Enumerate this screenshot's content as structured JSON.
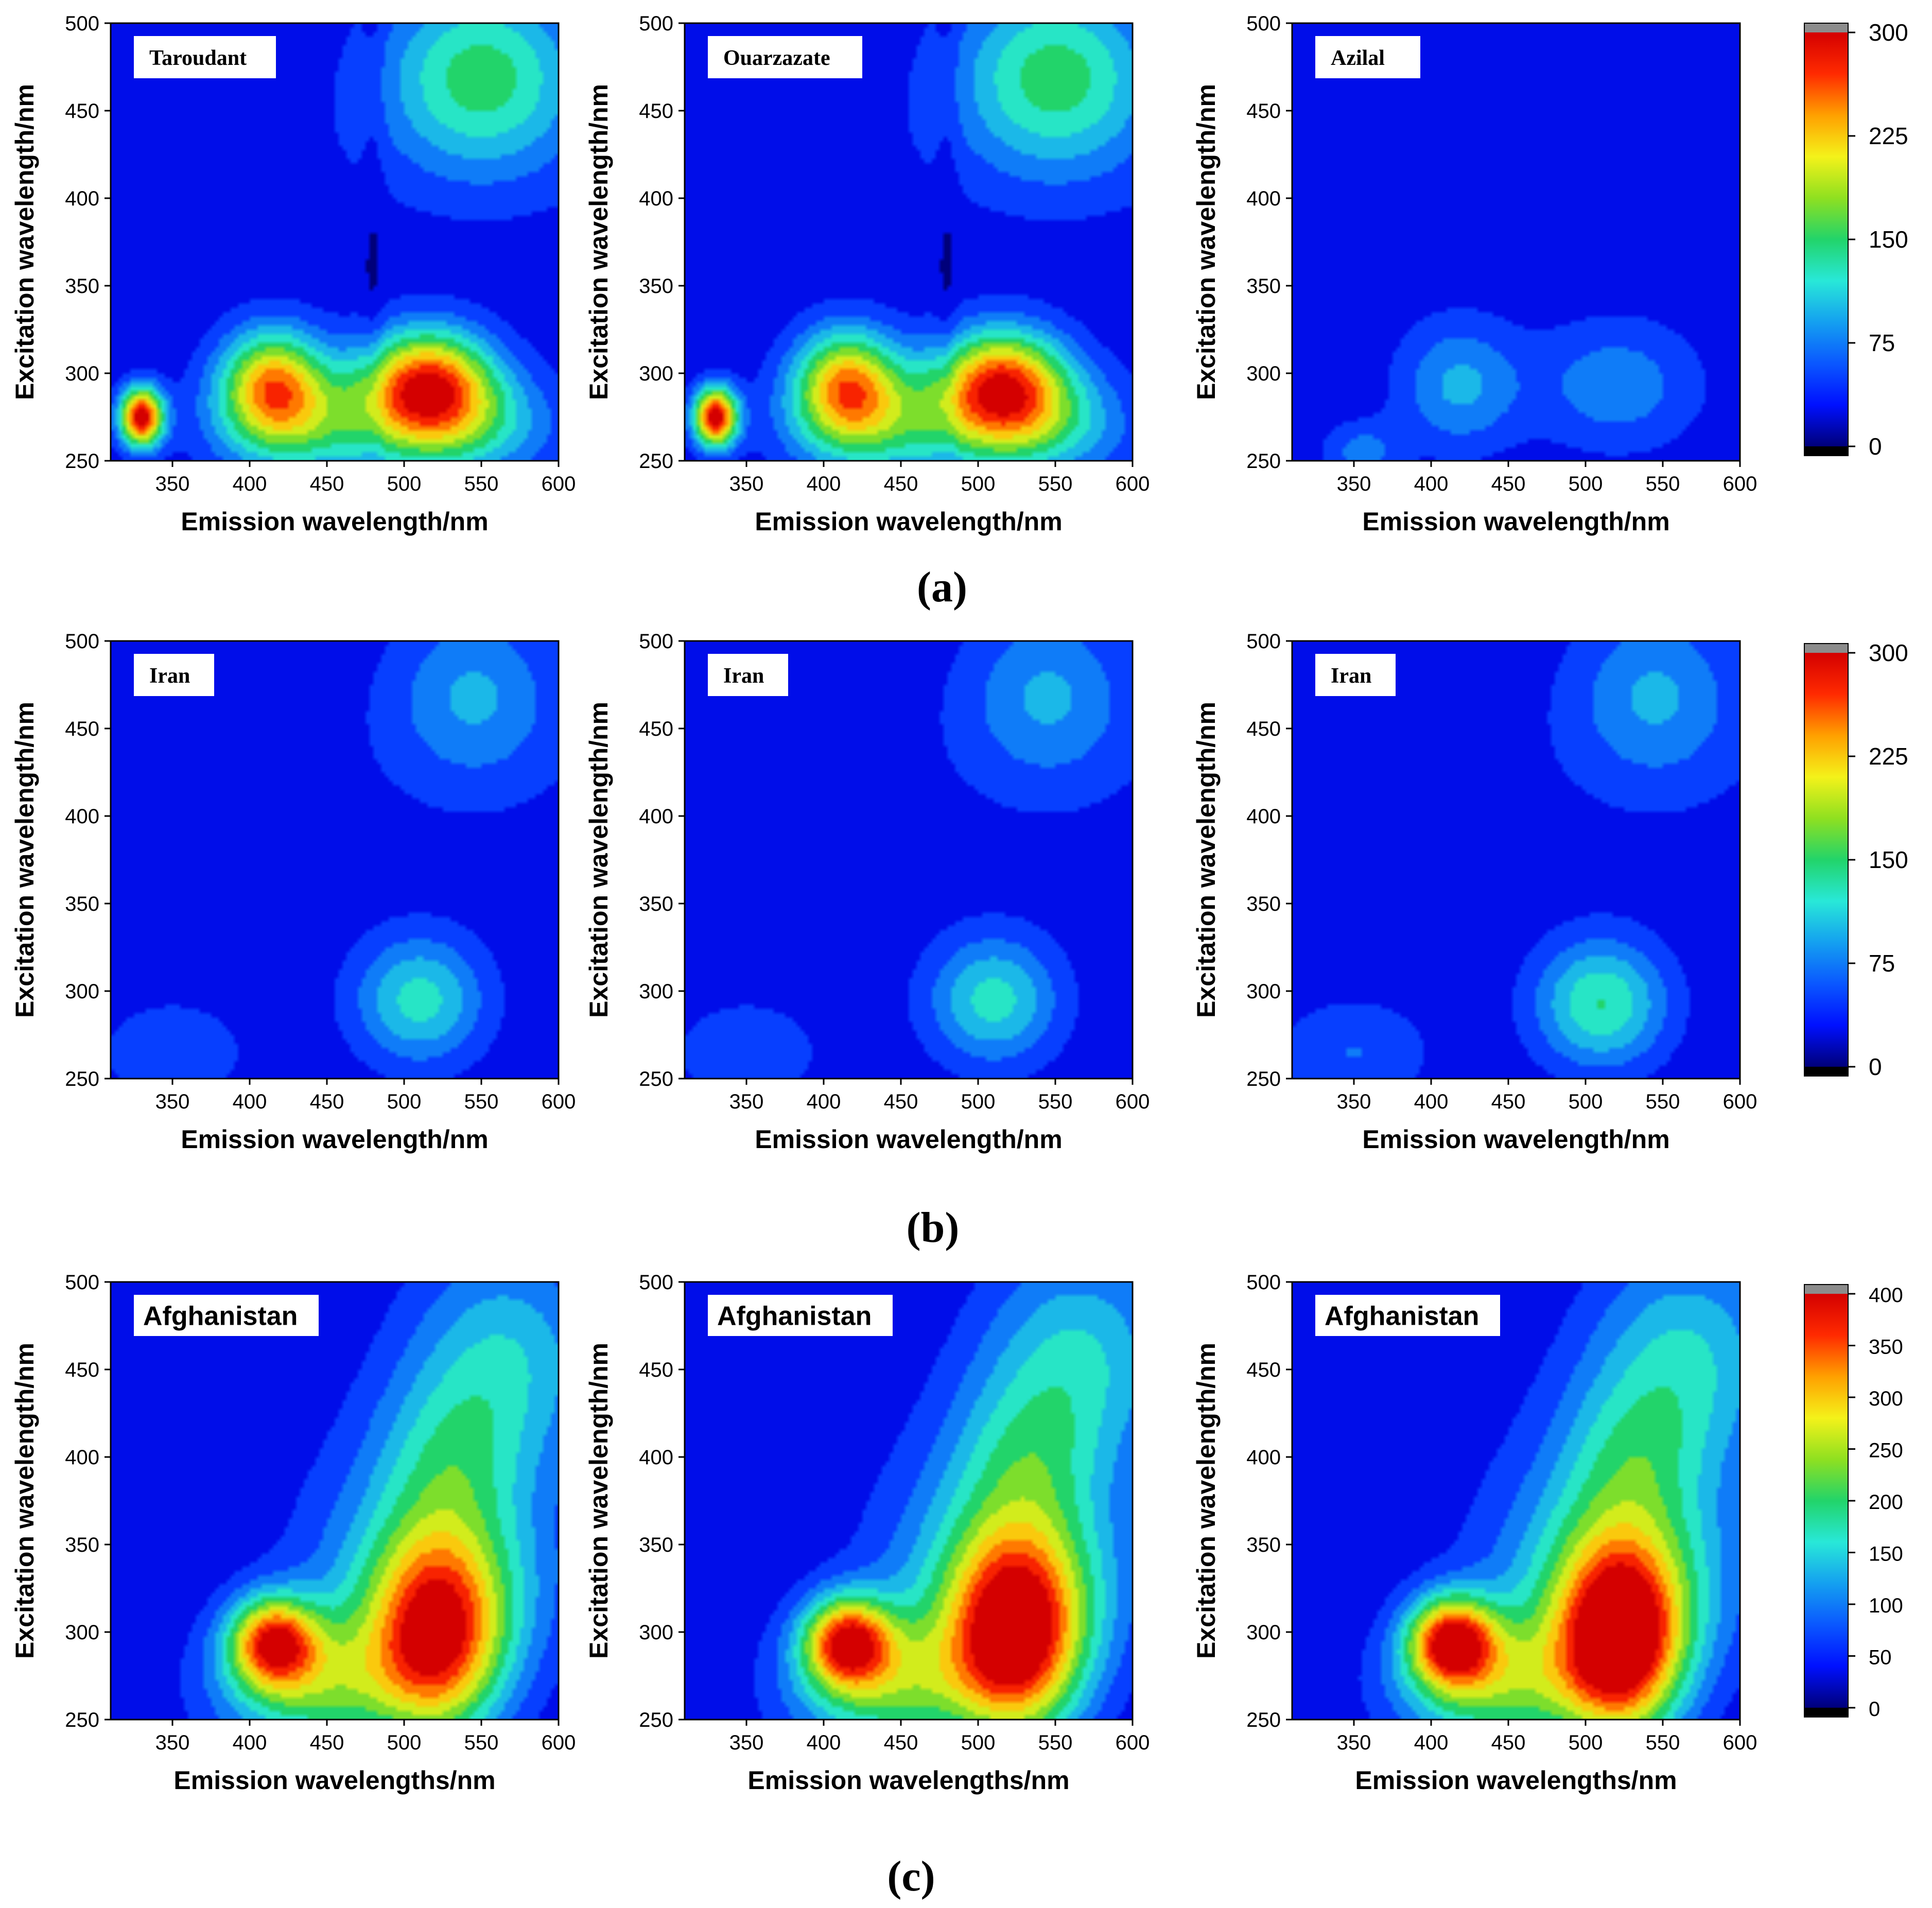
{
  "figure": {
    "row_labels": [
      "(a)",
      "(b)",
      "(c)"
    ]
  },
  "colors": {
    "colormap": [
      "#00007a",
      "#0010ff",
      "#0a57ff",
      "#14a0f0",
      "#28e8d8",
      "#22d46a",
      "#8fe020",
      "#f4f21a",
      "#ffa000",
      "#ff2a00",
      "#d40000"
    ],
    "over_color": "#8c8c8c",
    "under_color": "#000000",
    "label_box_bg": "#ffffff",
    "contour_line": "#3a3a3a"
  },
  "chart_data": [
    {
      "type": "heatmap",
      "id": "a1",
      "row": 0,
      "col": 0,
      "sample_label": "Taroudant",
      "label_style": "serif",
      "xlabel": "Emission wavelength/nm",
      "ylabel": "Excitation wavelength/nm",
      "xlim": [
        310,
        600
      ],
      "ylim": [
        250,
        500
      ],
      "x_ticks": [
        "350",
        "400",
        "450",
        "500",
        "550",
        "600"
      ],
      "y_ticks": [
        "250",
        "300",
        "350",
        "400",
        "450",
        "500"
      ],
      "vmax": 300,
      "peaks": [
        {
          "ex": 275,
          "em": 330,
          "value": 290,
          "sx": 10,
          "sy": 12
        },
        {
          "ex": 295,
          "em": 415,
          "value": 195,
          "sx": 24,
          "sy": 22
        },
        {
          "ex": 295,
          "em": 515,
          "value": 230,
          "sx": 30,
          "sy": 22
        },
        {
          "ex": 270,
          "em": 430,
          "value": 100,
          "sx": 40,
          "sy": 22
        },
        {
          "ex": 270,
          "em": 530,
          "value": 115,
          "sx": 45,
          "sy": 22
        },
        {
          "ex": 470,
          "em": 550,
          "value": 130,
          "sx": 45,
          "sy": 38
        }
      ],
      "bands": [
        {
          "em": 480,
          "width": 5,
          "value": -15
        }
      ]
    },
    {
      "type": "heatmap",
      "id": "a2",
      "row": 0,
      "col": 1,
      "sample_label": "Ouarzazate",
      "label_style": "serif",
      "xlabel": "Emission wavelength/nm",
      "ylabel": "Excitation wavelength/nm",
      "xlim": [
        310,
        600
      ],
      "ylim": [
        250,
        500
      ],
      "x_ticks": [
        "350",
        "400",
        "450",
        "500",
        "550",
        "600"
      ],
      "y_ticks": [
        "250",
        "300",
        "350",
        "400",
        "450",
        "500"
      ],
      "vmax": 300,
      "peaks": [
        {
          "ex": 275,
          "em": 330,
          "value": 290,
          "sx": 10,
          "sy": 12
        },
        {
          "ex": 295,
          "em": 415,
          "value": 195,
          "sx": 24,
          "sy": 22
        },
        {
          "ex": 295,
          "em": 515,
          "value": 225,
          "sx": 30,
          "sy": 22
        },
        {
          "ex": 270,
          "em": 430,
          "value": 100,
          "sx": 40,
          "sy": 22
        },
        {
          "ex": 270,
          "em": 530,
          "value": 115,
          "sx": 45,
          "sy": 22
        },
        {
          "ex": 470,
          "em": 550,
          "value": 130,
          "sx": 45,
          "sy": 38
        }
      ],
      "bands": [
        {
          "em": 480,
          "width": 5,
          "value": -15
        }
      ]
    },
    {
      "type": "heatmap",
      "id": "a3",
      "row": 0,
      "col": 2,
      "sample_label": "Azilal",
      "label_style": "serif",
      "xlabel": "Emission wavelength/nm",
      "ylabel": "Excitation wavelength/nm",
      "xlim": [
        310,
        600
      ],
      "ylim": [
        250,
        500
      ],
      "x_ticks": [
        "350",
        "400",
        "450",
        "500",
        "550",
        "600"
      ],
      "y_ticks": [
        "250",
        "300",
        "350",
        "400",
        "450",
        "500"
      ],
      "vmax": 300,
      "peaks": [
        {
          "ex": 293,
          "em": 418,
          "value": 75,
          "sx": 28,
          "sy": 26
        },
        {
          "ex": 293,
          "em": 520,
          "value": 62,
          "sx": 38,
          "sy": 26
        },
        {
          "ex": 255,
          "em": 355,
          "value": 55,
          "sx": 18,
          "sy": 12
        }
      ],
      "bands": []
    },
    {
      "type": "heatmap",
      "id": "b1",
      "row": 1,
      "col": 0,
      "sample_label": "Iran",
      "label_style": "serif",
      "xlabel": "Emission wavelength/nm",
      "ylabel": "Excitation wavelength/nm",
      "xlim": [
        310,
        600
      ],
      "ylim": [
        250,
        500
      ],
      "x_ticks": [
        "350",
        "400",
        "450",
        "500",
        "550",
        "600"
      ],
      "y_ticks": [
        "250",
        "300",
        "350",
        "400",
        "450",
        "500"
      ],
      "vmax": 300,
      "peaks": [
        {
          "ex": 295,
          "em": 510,
          "value": 105,
          "sx": 30,
          "sy": 26
        },
        {
          "ex": 470,
          "em": 545,
          "value": 70,
          "sx": 38,
          "sy": 35
        },
        {
          "ex": 265,
          "em": 350,
          "value": 40,
          "sx": 35,
          "sy": 22
        }
      ],
      "bands": []
    },
    {
      "type": "heatmap",
      "id": "b2",
      "row": 1,
      "col": 1,
      "sample_label": "Iran",
      "label_style": "serif",
      "xlabel": "Emission wavelength/nm",
      "ylabel": "Excitation wavelength/nm",
      "xlim": [
        310,
        600
      ],
      "ylim": [
        250,
        500
      ],
      "x_ticks": [
        "350",
        "400",
        "450",
        "500",
        "550",
        "600"
      ],
      "y_ticks": [
        "250",
        "300",
        "350",
        "400",
        "450",
        "500"
      ],
      "vmax": 300,
      "peaks": [
        {
          "ex": 295,
          "em": 510,
          "value": 105,
          "sx": 30,
          "sy": 26
        },
        {
          "ex": 470,
          "em": 545,
          "value": 70,
          "sx": 38,
          "sy": 35
        },
        {
          "ex": 265,
          "em": 350,
          "value": 40,
          "sx": 35,
          "sy": 22
        }
      ],
      "bands": []
    },
    {
      "type": "heatmap",
      "id": "b3",
      "row": 1,
      "col": 2,
      "sample_label": "Iran",
      "label_style": "serif",
      "xlabel": "Emission wavelength/nm",
      "ylabel": "Excitation wavelength/nm",
      "xlim": [
        310,
        600
      ],
      "ylim": [
        250,
        500
      ],
      "x_ticks": [
        "350",
        "400",
        "450",
        "500",
        "550",
        "600"
      ],
      "y_ticks": [
        "250",
        "300",
        "350",
        "400",
        "450",
        "500"
      ],
      "vmax": 300,
      "peaks": [
        {
          "ex": 293,
          "em": 510,
          "value": 120,
          "sx": 30,
          "sy": 26
        },
        {
          "ex": 470,
          "em": 545,
          "value": 70,
          "sx": 38,
          "sy": 35
        },
        {
          "ex": 265,
          "em": 350,
          "value": 45,
          "sx": 35,
          "sy": 22
        }
      ],
      "bands": []
    },
    {
      "type": "heatmap",
      "id": "c1",
      "row": 2,
      "col": 0,
      "sample_label": "Afghanistan",
      "label_style": "sans",
      "xlabel": "Emission wavelengths/nm",
      "ylabel": "Excitation wavelength/nm",
      "xlim": [
        310,
        600
      ],
      "ylim": [
        250,
        500
      ],
      "x_ticks": [
        "350",
        "400",
        "450",
        "500",
        "550",
        "600"
      ],
      "y_ticks": [
        "250",
        "300",
        "350",
        "400",
        "450",
        "500"
      ],
      "vmax": 400,
      "peaks": [
        {
          "ex": 295,
          "em": 415,
          "value": 290,
          "sx": 20,
          "sy": 18
        },
        {
          "ex": 295,
          "em": 522,
          "value": 290,
          "sx": 30,
          "sy": 40
        },
        {
          "ex": 270,
          "em": 440,
          "value": 180,
          "sx": 45,
          "sy": 28
        },
        {
          "ex": 330,
          "em": 520,
          "value": 150,
          "sx": 55,
          "sy": 45
        },
        {
          "ex": 460,
          "em": 565,
          "value": 120,
          "sx": 45,
          "sy": 45
        },
        {
          "ex": 400,
          "em": 530,
          "value": 95,
          "sx": 35,
          "sy": 35
        }
      ],
      "bands": []
    },
    {
      "type": "heatmap",
      "id": "c2",
      "row": 2,
      "col": 1,
      "sample_label": "Afghanistan",
      "label_style": "sans",
      "xlabel": "Emission wavelengths/nm",
      "ylabel": "Excitation wavelength/nm",
      "xlim": [
        310,
        600
      ],
      "ylim": [
        250,
        500
      ],
      "x_ticks": [
        "350",
        "400",
        "450",
        "500",
        "550",
        "600"
      ],
      "y_ticks": [
        "250",
        "300",
        "350",
        "400",
        "450",
        "500"
      ],
      "vmax": 400,
      "peaks": [
        {
          "ex": 295,
          "em": 415,
          "value": 300,
          "sx": 20,
          "sy": 18
        },
        {
          "ex": 295,
          "em": 525,
          "value": 330,
          "sx": 30,
          "sy": 40
        },
        {
          "ex": 270,
          "em": 440,
          "value": 180,
          "sx": 45,
          "sy": 28
        },
        {
          "ex": 330,
          "em": 520,
          "value": 160,
          "sx": 55,
          "sy": 45
        },
        {
          "ex": 460,
          "em": 565,
          "value": 125,
          "sx": 45,
          "sy": 45
        },
        {
          "ex": 400,
          "em": 530,
          "value": 95,
          "sx": 35,
          "sy": 35
        }
      ],
      "bands": []
    },
    {
      "type": "heatmap",
      "id": "c3",
      "row": 2,
      "col": 2,
      "sample_label": "Afghanistan",
      "label_style": "sans",
      "xlabel": "Emission wavelengths/nm",
      "ylabel": "Excitation wavelength/nm",
      "xlim": [
        310,
        600
      ],
      "ylim": [
        250,
        500
      ],
      "x_ticks": [
        "350",
        "400",
        "450",
        "500",
        "550",
        "600"
      ],
      "y_ticks": [
        "250",
        "300",
        "350",
        "400",
        "450",
        "500"
      ],
      "vmax": 400,
      "peaks": [
        {
          "ex": 295,
          "em": 413,
          "value": 320,
          "sx": 20,
          "sy": 18
        },
        {
          "ex": 293,
          "em": 523,
          "value": 360,
          "sx": 28,
          "sy": 38
        },
        {
          "ex": 270,
          "em": 440,
          "value": 185,
          "sx": 45,
          "sy": 28
        },
        {
          "ex": 330,
          "em": 520,
          "value": 170,
          "sx": 55,
          "sy": 45
        },
        {
          "ex": 460,
          "em": 565,
          "value": 125,
          "sx": 45,
          "sy": 45
        },
        {
          "ex": 400,
          "em": 530,
          "value": 95,
          "sx": 35,
          "sy": 35
        }
      ],
      "bands": []
    }
  ],
  "colorbars": [
    {
      "id": "cb-a",
      "row": 0,
      "vmin": 0,
      "vmax": 300,
      "ticks": [
        "0",
        "75",
        "150",
        "225",
        "300"
      ]
    },
    {
      "id": "cb-b",
      "row": 1,
      "vmin": 0,
      "vmax": 300,
      "ticks": [
        "0",
        "75",
        "150",
        "225",
        "300"
      ]
    },
    {
      "id": "cb-c",
      "row": 2,
      "vmin": 0,
      "vmax": 400,
      "ticks": [
        "0",
        "50",
        "100",
        "150",
        "200",
        "250",
        "300",
        "350",
        "400"
      ]
    }
  ]
}
